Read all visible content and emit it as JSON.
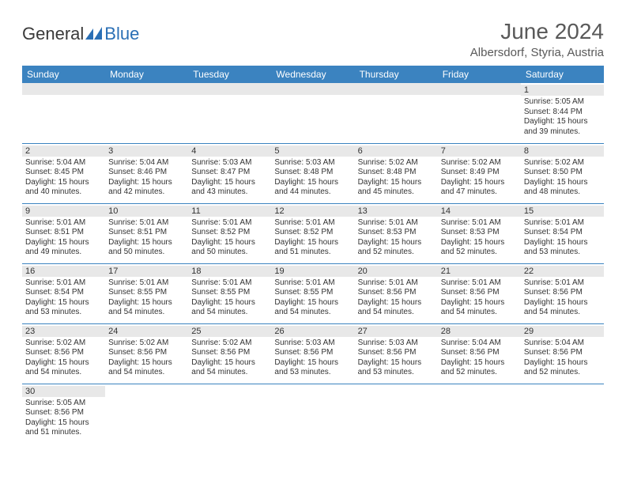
{
  "logo": {
    "text1": "General",
    "text2": "Blue"
  },
  "title": "June 2024",
  "location": "Albersdorf, Styria, Austria",
  "colors": {
    "header_bg": "#3b83c0",
    "header_fg": "#ffffff",
    "daybar_bg": "#e8e8e8",
    "text": "#333333",
    "title_color": "#595959",
    "logo_gray": "#3a3a3a",
    "logo_blue": "#2a6fb5",
    "border": "#3b83c0"
  },
  "day_headers": [
    "Sunday",
    "Monday",
    "Tuesday",
    "Wednesday",
    "Thursday",
    "Friday",
    "Saturday"
  ],
  "weeks": [
    [
      null,
      null,
      null,
      null,
      null,
      null,
      {
        "d": "1",
        "rise": "5:05 AM",
        "set": "8:44 PM",
        "dlh": "15",
        "dlm": "39"
      }
    ],
    [
      {
        "d": "2",
        "rise": "5:04 AM",
        "set": "8:45 PM",
        "dlh": "15",
        "dlm": "40"
      },
      {
        "d": "3",
        "rise": "5:04 AM",
        "set": "8:46 PM",
        "dlh": "15",
        "dlm": "42"
      },
      {
        "d": "4",
        "rise": "5:03 AM",
        "set": "8:47 PM",
        "dlh": "15",
        "dlm": "43"
      },
      {
        "d": "5",
        "rise": "5:03 AM",
        "set": "8:48 PM",
        "dlh": "15",
        "dlm": "44"
      },
      {
        "d": "6",
        "rise": "5:02 AM",
        "set": "8:48 PM",
        "dlh": "15",
        "dlm": "45"
      },
      {
        "d": "7",
        "rise": "5:02 AM",
        "set": "8:49 PM",
        "dlh": "15",
        "dlm": "47"
      },
      {
        "d": "8",
        "rise": "5:02 AM",
        "set": "8:50 PM",
        "dlh": "15",
        "dlm": "48"
      }
    ],
    [
      {
        "d": "9",
        "rise": "5:01 AM",
        "set": "8:51 PM",
        "dlh": "15",
        "dlm": "49"
      },
      {
        "d": "10",
        "rise": "5:01 AM",
        "set": "8:51 PM",
        "dlh": "15",
        "dlm": "50"
      },
      {
        "d": "11",
        "rise": "5:01 AM",
        "set": "8:52 PM",
        "dlh": "15",
        "dlm": "50"
      },
      {
        "d": "12",
        "rise": "5:01 AM",
        "set": "8:52 PM",
        "dlh": "15",
        "dlm": "51"
      },
      {
        "d": "13",
        "rise": "5:01 AM",
        "set": "8:53 PM",
        "dlh": "15",
        "dlm": "52"
      },
      {
        "d": "14",
        "rise": "5:01 AM",
        "set": "8:53 PM",
        "dlh": "15",
        "dlm": "52"
      },
      {
        "d": "15",
        "rise": "5:01 AM",
        "set": "8:54 PM",
        "dlh": "15",
        "dlm": "53"
      }
    ],
    [
      {
        "d": "16",
        "rise": "5:01 AM",
        "set": "8:54 PM",
        "dlh": "15",
        "dlm": "53"
      },
      {
        "d": "17",
        "rise": "5:01 AM",
        "set": "8:55 PM",
        "dlh": "15",
        "dlm": "54"
      },
      {
        "d": "18",
        "rise": "5:01 AM",
        "set": "8:55 PM",
        "dlh": "15",
        "dlm": "54"
      },
      {
        "d": "19",
        "rise": "5:01 AM",
        "set": "8:55 PM",
        "dlh": "15",
        "dlm": "54"
      },
      {
        "d": "20",
        "rise": "5:01 AM",
        "set": "8:56 PM",
        "dlh": "15",
        "dlm": "54"
      },
      {
        "d": "21",
        "rise": "5:01 AM",
        "set": "8:56 PM",
        "dlh": "15",
        "dlm": "54"
      },
      {
        "d": "22",
        "rise": "5:01 AM",
        "set": "8:56 PM",
        "dlh": "15",
        "dlm": "54"
      }
    ],
    [
      {
        "d": "23",
        "rise": "5:02 AM",
        "set": "8:56 PM",
        "dlh": "15",
        "dlm": "54"
      },
      {
        "d": "24",
        "rise": "5:02 AM",
        "set": "8:56 PM",
        "dlh": "15",
        "dlm": "54"
      },
      {
        "d": "25",
        "rise": "5:02 AM",
        "set": "8:56 PM",
        "dlh": "15",
        "dlm": "54"
      },
      {
        "d": "26",
        "rise": "5:03 AM",
        "set": "8:56 PM",
        "dlh": "15",
        "dlm": "53"
      },
      {
        "d": "27",
        "rise": "5:03 AM",
        "set": "8:56 PM",
        "dlh": "15",
        "dlm": "53"
      },
      {
        "d": "28",
        "rise": "5:04 AM",
        "set": "8:56 PM",
        "dlh": "15",
        "dlm": "52"
      },
      {
        "d": "29",
        "rise": "5:04 AM",
        "set": "8:56 PM",
        "dlh": "15",
        "dlm": "52"
      }
    ],
    [
      {
        "d": "30",
        "rise": "5:05 AM",
        "set": "8:56 PM",
        "dlh": "15",
        "dlm": "51"
      },
      null,
      null,
      null,
      null,
      null,
      null
    ]
  ],
  "labels": {
    "sunrise": "Sunrise:",
    "sunset": "Sunset:",
    "daylight": "Daylight:",
    "hours": "hours",
    "and": "and",
    "minutes": "minutes."
  }
}
